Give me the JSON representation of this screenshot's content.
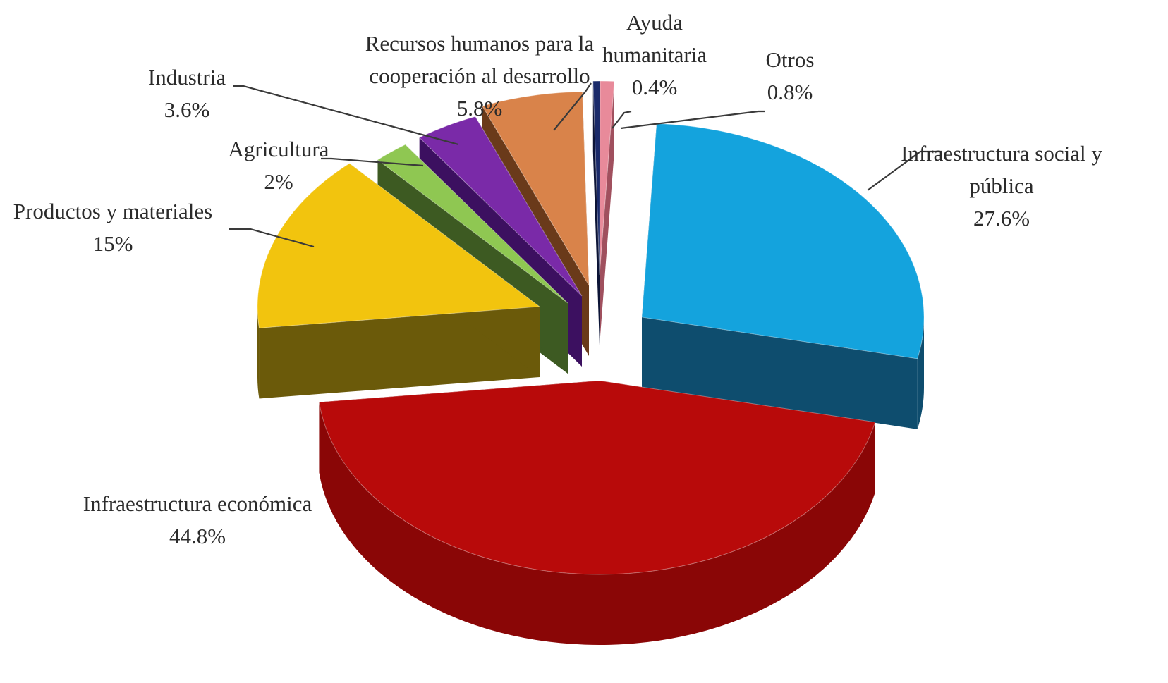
{
  "chart_data": {
    "type": "pie",
    "style": "3d-exploded",
    "slices": [
      {
        "name": "Infraestructura social y pública",
        "label_lines": [
          "Infraestructura social y",
          "pública"
        ],
        "value": 27.6,
        "value_label": "27.6%",
        "color": "#14a3dd",
        "side_color": "#0e4d6e"
      },
      {
        "name": "Infraestructura económica",
        "label_lines": [
          "Infraestructura económica"
        ],
        "value": 44.8,
        "value_label": "44.8%",
        "color": "#b80a0a",
        "side_color": "#6e0505"
      },
      {
        "name": "Productos y materiales",
        "label_lines": [
          "Productos y materiales"
        ],
        "value": 15,
        "value_label": "15%",
        "color": "#f2c40e",
        "side_color": "#6b5a0a"
      },
      {
        "name": "Agricultura",
        "label_lines": [
          "Agricultura"
        ],
        "value": 2,
        "value_label": "2%",
        "color": "#8fc752",
        "side_color": "#3d5a22"
      },
      {
        "name": "Industria",
        "label_lines": [
          "Industria"
        ],
        "value": 3.6,
        "value_label": "3.6%",
        "color": "#7a2aa8",
        "side_color": "#3c1060"
      },
      {
        "name": "Recursos humanos para la cooperación al desarrollo",
        "label_lines": [
          "Recursos humanos para la",
          "cooperación al desarrollo"
        ],
        "value": 5.8,
        "value_label": "5.8%",
        "color": "#d9834a",
        "side_color": "#6a3a1a"
      },
      {
        "name": "Ayuda humanitaria",
        "label_lines": [
          "Ayuda",
          "humanitaria"
        ],
        "value": 0.4,
        "value_label": "0.4%",
        "color": "#1a2a6a",
        "side_color": "#0c1436"
      },
      {
        "name": "Otros",
        "label_lines": [
          "Otros"
        ],
        "value": 0.8,
        "value_label": "0.8%",
        "color": "#e88a9a",
        "side_color": "#a0505e"
      }
    ]
  }
}
